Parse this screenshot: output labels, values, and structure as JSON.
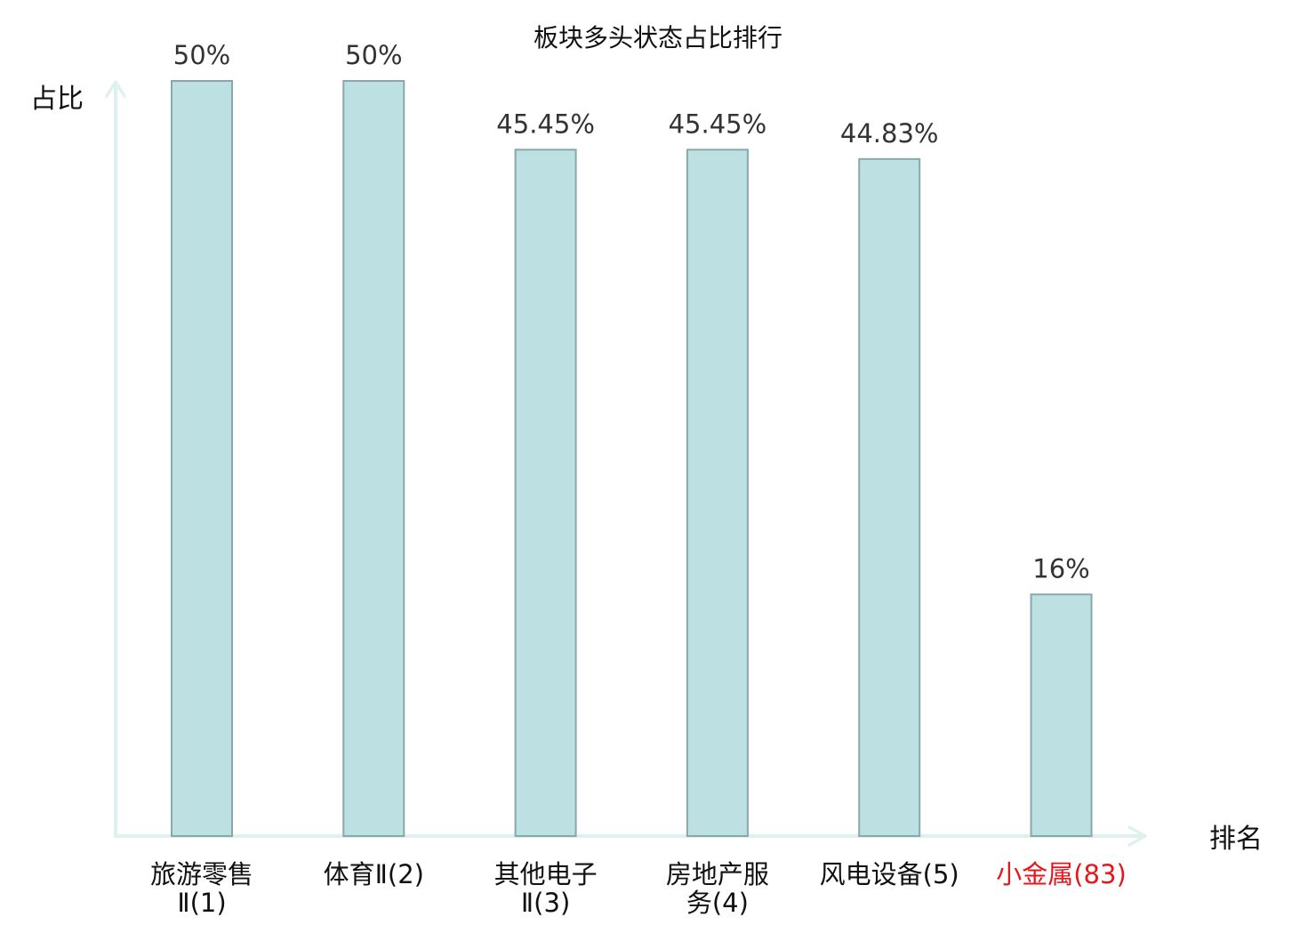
{
  "chart_data": {
    "type": "bar",
    "title": "板块多头状态占比排行",
    "ylabel": "占比",
    "xlabel": "排名",
    "ylim": [
      0,
      50
    ],
    "value_format": "percent",
    "categories": [
      {
        "lines": [
          "旅游零售",
          "Ⅱ(1)"
        ],
        "highlight": false
      },
      {
        "lines": [
          "体育Ⅱ(2)"
        ],
        "highlight": false
      },
      {
        "lines": [
          "其他电子",
          "Ⅱ(3)"
        ],
        "highlight": false
      },
      {
        "lines": [
          "房地产服",
          "务(4)"
        ],
        "highlight": false
      },
      {
        "lines": [
          "风电设备(5)"
        ],
        "highlight": false
      },
      {
        "lines": [
          "小金属(83)"
        ],
        "highlight": true
      }
    ],
    "values": [
      50,
      50,
      45.45,
      45.45,
      44.83,
      16
    ],
    "value_labels": [
      "50%",
      "50%",
      "45.45%",
      "45.45%",
      "44.83%",
      "16%"
    ],
    "grid": false,
    "legend": "none"
  },
  "colors": {
    "bar_fill": "#bde0e2",
    "bar_stroke": "#88a8aa",
    "axis": "#dff1ee",
    "text": "#111111",
    "value_text": "#333333",
    "highlight": "#e8151b"
  }
}
